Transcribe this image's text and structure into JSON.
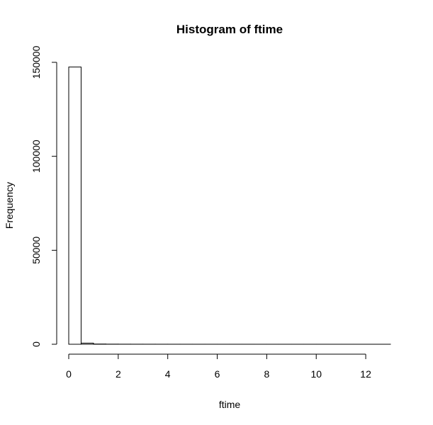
{
  "chart_data": {
    "type": "bar",
    "title": "Histogram of ftime",
    "xlabel": "ftime",
    "ylabel": "Frequency",
    "xlim": [
      0,
      13
    ],
    "ylim": [
      0,
      150000
    ],
    "x_ticks": [
      0,
      2,
      4,
      6,
      8,
      10,
      12
    ],
    "y_ticks": [
      0,
      50000,
      100000,
      150000
    ],
    "bin_width": 0.5,
    "bins": [
      {
        "start": 0.0,
        "end": 0.5,
        "count": 147500
      },
      {
        "start": 0.5,
        "end": 1.0,
        "count": 600
      },
      {
        "start": 1.0,
        "end": 1.5,
        "count": 120
      },
      {
        "start": 1.5,
        "end": 2.0,
        "count": 60
      },
      {
        "start": 2.0,
        "end": 2.5,
        "count": 40
      },
      {
        "start": 2.5,
        "end": 3.0,
        "count": 30
      },
      {
        "start": 3.0,
        "end": 3.5,
        "count": 25
      },
      {
        "start": 3.5,
        "end": 4.0,
        "count": 20
      },
      {
        "start": 4.0,
        "end": 4.5,
        "count": 15
      },
      {
        "start": 4.5,
        "end": 5.0,
        "count": 12
      },
      {
        "start": 5.0,
        "end": 5.5,
        "count": 10
      },
      {
        "start": 5.5,
        "end": 6.0,
        "count": 9
      },
      {
        "start": 6.0,
        "end": 6.5,
        "count": 8
      },
      {
        "start": 6.5,
        "end": 7.0,
        "count": 7
      },
      {
        "start": 7.0,
        "end": 7.5,
        "count": 6
      },
      {
        "start": 7.5,
        "end": 8.0,
        "count": 5
      },
      {
        "start": 8.0,
        "end": 8.5,
        "count": 5
      },
      {
        "start": 8.5,
        "end": 9.0,
        "count": 4
      },
      {
        "start": 9.0,
        "end": 9.5,
        "count": 4
      },
      {
        "start": 9.5,
        "end": 10.0,
        "count": 3
      },
      {
        "start": 10.0,
        "end": 10.5,
        "count": 3
      },
      {
        "start": 10.5,
        "end": 11.0,
        "count": 2
      },
      {
        "start": 11.0,
        "end": 11.5,
        "count": 2
      },
      {
        "start": 11.5,
        "end": 12.0,
        "count": 2
      },
      {
        "start": 12.0,
        "end": 12.5,
        "count": 1
      },
      {
        "start": 12.5,
        "end": 13.0,
        "count": 1
      }
    ],
    "grid": false,
    "legend": false
  }
}
